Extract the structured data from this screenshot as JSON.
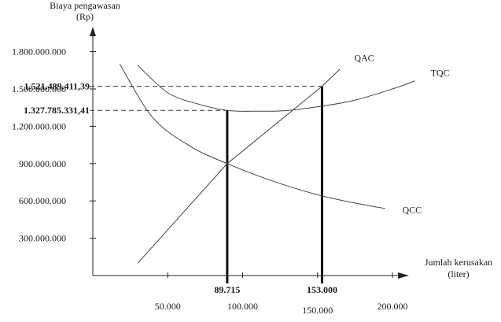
{
  "chart_data": {
    "type": "line",
    "ylabel": [
      "Biaya pengawasan",
      "(Rp)"
    ],
    "xlabel": [
      "Jumlah kerusakan",
      "(liter)"
    ],
    "xlim": [
      0,
      230000
    ],
    "ylim": [
      0,
      2150000000
    ],
    "y_ticks": [
      {
        "value": 300000000,
        "label": "300.000.000"
      },
      {
        "value": 600000000,
        "label": "600.000.000"
      },
      {
        "value": 900000000,
        "label": "900.000.000"
      },
      {
        "value": 1200000000,
        "label": "1.200.000.000"
      },
      {
        "value": 1500000000,
        "label": "1.500.000.000"
      },
      {
        "value": 1800000000,
        "label": "1.800.000.000"
      }
    ],
    "x_ticks": [
      {
        "value": 50000,
        "label": "50.000"
      },
      {
        "value": 100000,
        "label": "100.000"
      },
      {
        "value": 150000,
        "label": "150.000"
      },
      {
        "value": 200000,
        "label": "200.000"
      }
    ],
    "highlight_y": [
      {
        "value": 1521489411.39,
        "label": "1.521.489.411,39",
        "x_end": 153000
      },
      {
        "value": 1327785331.41,
        "label": "1.327.785.331,41",
        "x_end": 89715
      }
    ],
    "highlight_x": [
      {
        "value": 89715,
        "label": "89.715"
      },
      {
        "value": 153000,
        "label": "153.000"
      }
    ],
    "series": [
      {
        "name": "TQC",
        "x": [
          30000,
          50000,
          70000,
          89715,
          110000,
          130000,
          153000,
          175000,
          200000,
          215000
        ],
        "y": [
          1690000000,
          1470000000,
          1380000000,
          1327785331,
          1321000000,
          1327000000,
          1362000000,
          1410000000,
          1500000000,
          1565000000
        ]
      },
      {
        "name": "QAC",
        "x": [
          30000,
          89715,
          153000,
          165000
        ],
        "y": [
          100000000,
          900000000,
          1521489411,
          1660000000
        ]
      },
      {
        "name": "QCC",
        "x": [
          18000,
          40000,
          65000,
          89715,
          120000,
          153000,
          185000,
          195000
        ],
        "y": [
          1700000000,
          1270000000,
          1040000000,
          900000000,
          760000000,
          640000000,
          560000000,
          540000000
        ]
      }
    ]
  }
}
